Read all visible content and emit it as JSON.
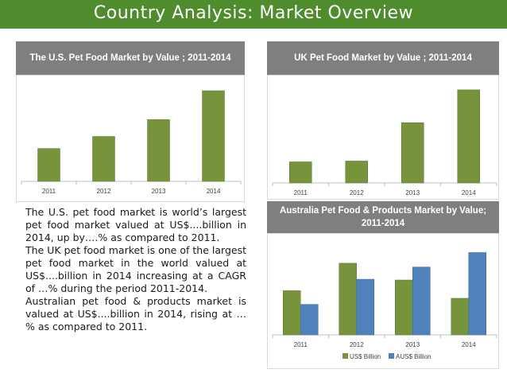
{
  "page": {
    "title": "Country Analysis: Market Overview",
    "paragraphs": [
      "The U.S. pet food market is world’s largest pet food market valued at US$....billion in 2014, up by….% as compared to 2011.",
      "The UK pet food market is one of the largest pet food market in the world valued at US$....billion in 2014 increasing at a CAGR of …% during the period 2011-2014.",
      "Australian pet food & products market is valued at US$....billion in 2014, rising at …% as compared to 2011."
    ],
    "colors": {
      "title_bar": "#4e8c2e",
      "header": "#7f7f7f",
      "green_bar": "#77933c",
      "blue_bar": "#4f81bd"
    }
  },
  "chart_data": [
    {
      "type": "bar",
      "title": "The U.S. Pet Food Market by Value ; 2011-2014",
      "categories": [
        "2011",
        "2012",
        "2013",
        "2014"
      ],
      "series": [
        {
          "values": [
            41,
            56,
            77,
            113
          ]
        }
      ],
      "ylim": [
        0,
        120
      ],
      "legend": "none",
      "grid": false
    },
    {
      "type": "bar",
      "title": "UK Pet Food Market by Value ; 2011-2014",
      "categories": [
        "2011",
        "2012",
        "2013",
        "2014"
      ],
      "series": [
        {
          "values": [
            27,
            28,
            77,
            119
          ]
        }
      ],
      "ylim": [
        0,
        125
      ],
      "legend": "none",
      "grid": false
    },
    {
      "type": "bar",
      "title": "Australia Pet Food & Products Market by Value; 2011-2014",
      "categories": [
        "2011",
        "2012",
        "2013",
        "2014"
      ],
      "series": [
        {
          "name": "US$ Billion",
          "values": [
            58,
            94,
            72,
            48
          ]
        },
        {
          "name": "AUS$ Billion",
          "values": [
            40,
            73,
            89,
            108
          ]
        }
      ],
      "ylim": [
        0,
        120
      ],
      "legend": "bottom",
      "grid": false
    }
  ]
}
